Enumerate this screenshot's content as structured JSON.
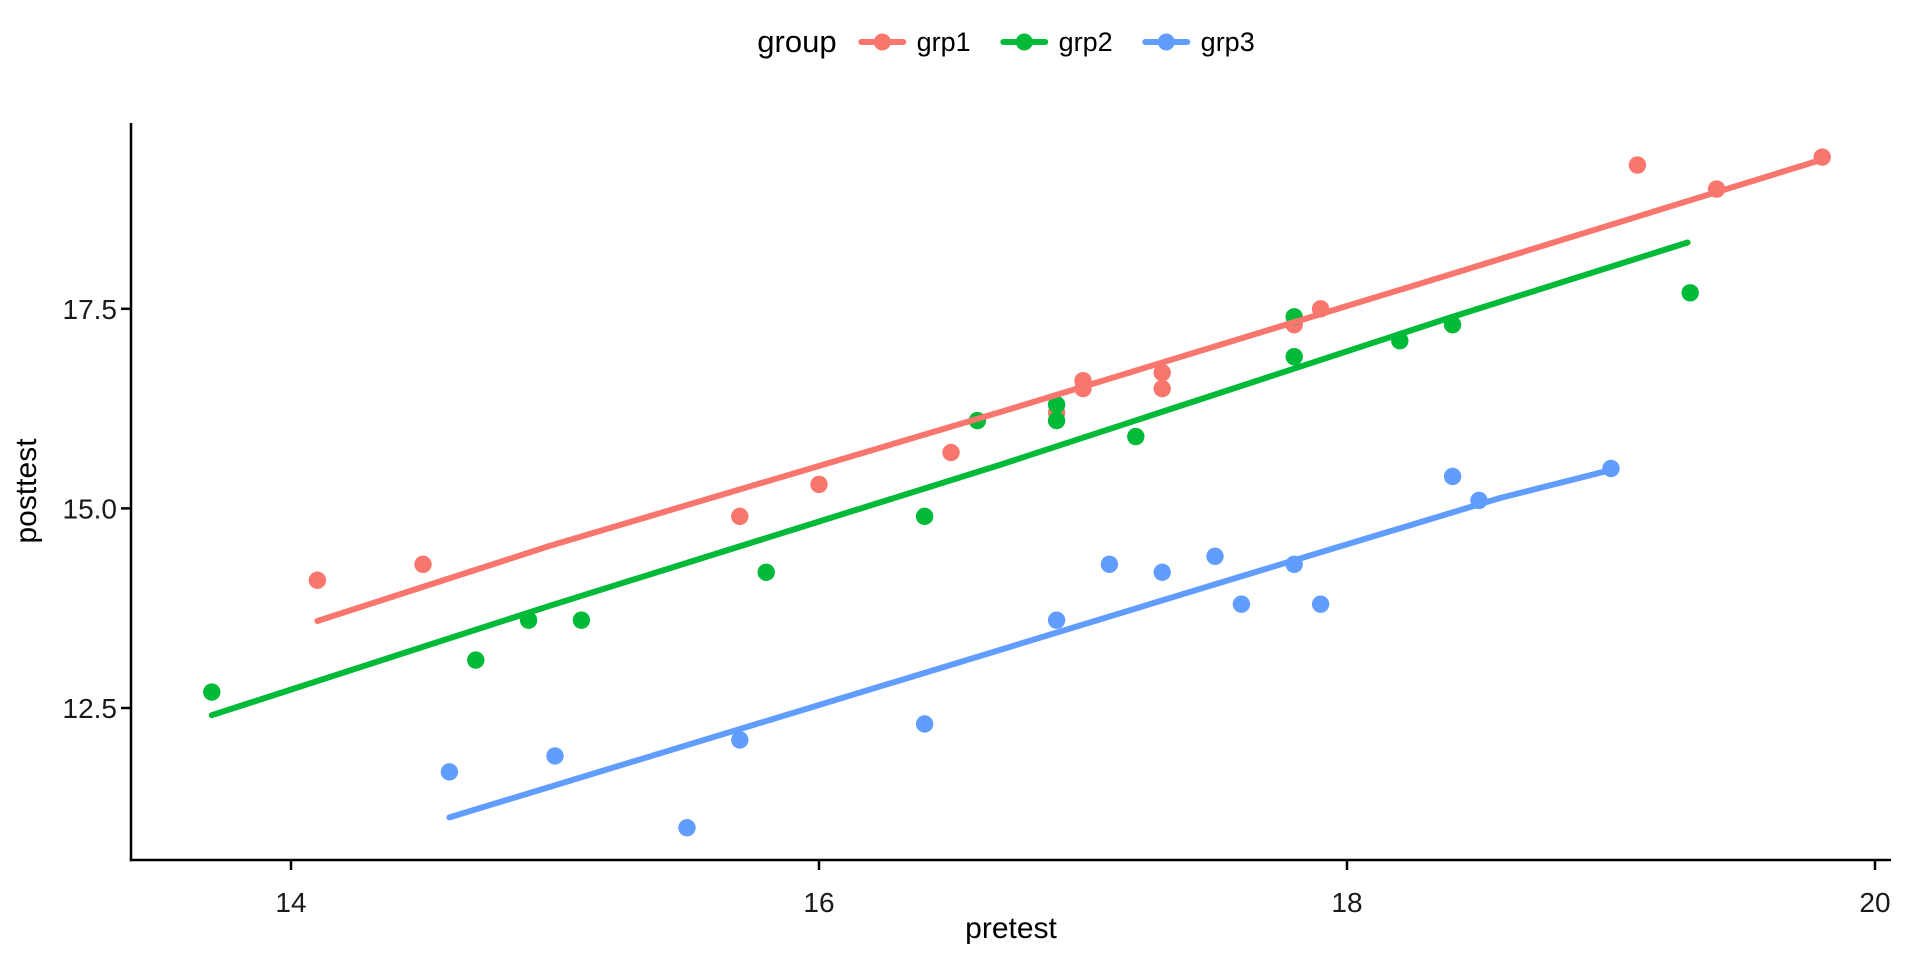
{
  "chart_data": {
    "type": "scatter",
    "title": "",
    "legend_title": "group",
    "legend_position": "top-center",
    "grid": false,
    "background": "#ffffff",
    "xlabel": "pretest",
    "ylabel": "posttest",
    "xlim": [
      13.39,
      20.06
    ],
    "ylim": [
      10.6,
      19.83
    ],
    "x_ticks": [
      {
        "value": 14,
        "label": "14"
      },
      {
        "value": 16,
        "label": "16"
      },
      {
        "value": 18,
        "label": "18"
      },
      {
        "value": 20,
        "label": "20"
      }
    ],
    "y_ticks": [
      {
        "value": 12.5,
        "label": "12.5"
      },
      {
        "value": 15.0,
        "label": "15.0"
      },
      {
        "value": 17.5,
        "label": "17.5"
      }
    ],
    "series": [
      {
        "name": "grp1",
        "color": "#F8766D",
        "points": [
          [
            14.1,
            14.1
          ],
          [
            14.5,
            14.3
          ],
          [
            15.7,
            14.9
          ],
          [
            16.0,
            15.3
          ],
          [
            16.5,
            15.7
          ],
          [
            16.9,
            16.2
          ],
          [
            17.0,
            16.6
          ],
          [
            17.0,
            16.5
          ],
          [
            17.3,
            16.7
          ],
          [
            17.3,
            16.5
          ],
          [
            17.8,
            17.3
          ],
          [
            17.9,
            17.5
          ],
          [
            19.1,
            19.3
          ],
          [
            19.4,
            19.0
          ],
          [
            19.8,
            19.4
          ]
        ],
        "trend": [
          [
            14.1,
            13.59
          ],
          [
            14.98,
            14.53
          ],
          [
            16.69,
            16.21
          ],
          [
            18.39,
            17.93
          ],
          [
            19.81,
            19.38
          ]
        ]
      },
      {
        "name": "grp2",
        "color": "#00BA38",
        "points": [
          [
            13.7,
            12.7
          ],
          [
            14.7,
            13.1
          ],
          [
            14.9,
            13.6
          ],
          [
            15.1,
            13.6
          ],
          [
            15.8,
            14.2
          ],
          [
            16.4,
            14.9
          ],
          [
            16.6,
            16.1
          ],
          [
            16.9,
            16.3
          ],
          [
            16.9,
            16.1
          ],
          [
            17.2,
            15.9
          ],
          [
            17.8,
            17.4
          ],
          [
            17.8,
            16.9
          ],
          [
            18.2,
            17.1
          ],
          [
            18.4,
            17.3
          ],
          [
            19.3,
            17.7
          ]
        ],
        "trend": [
          [
            13.7,
            12.41
          ],
          [
            14.98,
            13.78
          ],
          [
            16.69,
            15.55
          ],
          [
            18.39,
            17.39
          ],
          [
            19.29,
            18.33
          ]
        ]
      },
      {
        "name": "grp3",
        "color": "#619CFF",
        "points": [
          [
            14.6,
            11.7
          ],
          [
            15.0,
            11.9
          ],
          [
            15.5,
            11.0
          ],
          [
            15.7,
            12.1
          ],
          [
            16.4,
            12.3
          ],
          [
            16.9,
            13.6
          ],
          [
            17.1,
            14.3
          ],
          [
            17.3,
            14.2
          ],
          [
            17.5,
            14.4
          ],
          [
            17.6,
            13.8
          ],
          [
            17.8,
            14.3
          ],
          [
            17.9,
            13.8
          ],
          [
            18.4,
            15.4
          ],
          [
            18.5,
            15.1
          ],
          [
            19.0,
            15.5
          ]
        ],
        "trend": [
          [
            14.6,
            11.13
          ],
          [
            16.29,
            12.83
          ],
          [
            17.63,
            14.18
          ],
          [
            18.58,
            15.13
          ],
          [
            19.01,
            15.49
          ]
        ]
      }
    ]
  }
}
